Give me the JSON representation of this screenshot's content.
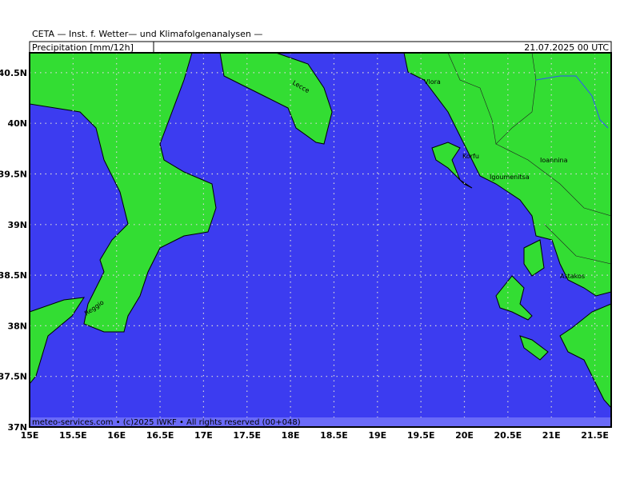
{
  "header": {
    "title": "CETA — Inst. f. Wetter— und Klimafolgenanalysen —",
    "product": "Precipitation [mm/12h]",
    "date": "21.07.2025 00 UTC"
  },
  "map": {
    "xticks": [
      "15E",
      "15.5E",
      "16E",
      "16.5E",
      "17E",
      "17.5E",
      "18E",
      "18.5E",
      "19E",
      "19.5E",
      "20E",
      "20.5E",
      "21E",
      "21.5E"
    ],
    "yticks": [
      "37N",
      "37.5N",
      "38N",
      "38.5N",
      "39N",
      "39.5N",
      "40N",
      "40.5N"
    ],
    "places": [
      "Lecce",
      "Vlora",
      "Korfu",
      "Igoumenitsa",
      "Ioannina",
      "Astakos",
      "Reggio"
    ]
  },
  "footer": "meteo-services.com • (c)2025 IWKF • All rights reserved (00+048)"
}
